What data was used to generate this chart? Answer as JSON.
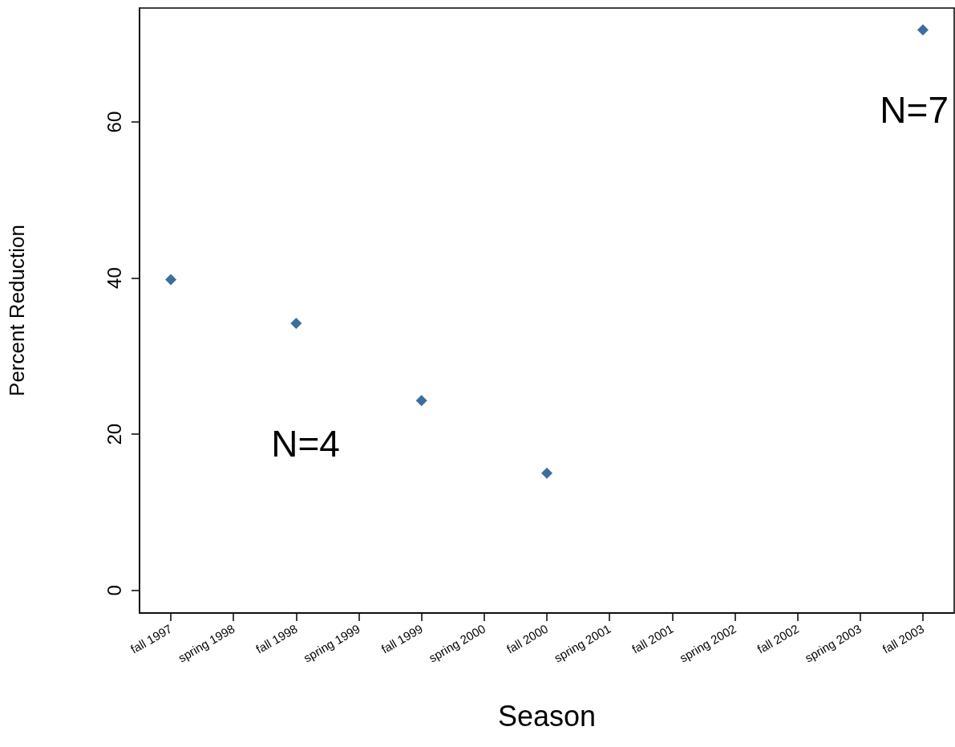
{
  "chart_data": {
    "type": "scatter",
    "xlabel": "Season",
    "ylabel": "Percent Reduction",
    "categories": [
      "fall 1997",
      "spring 1998",
      "fall 1998",
      "spring 1999",
      "fall 1999",
      "spring 2000",
      "fall 2000",
      "spring 2001",
      "fall 2001",
      "spring 2002",
      "fall 2002",
      "spring 2003",
      "fall 2003"
    ],
    "values": [
      39.8,
      null,
      34.2,
      null,
      24.3,
      null,
      15.0,
      null,
      null,
      null,
      null,
      null,
      71.8
    ],
    "color": "#0b4a84",
    "marker": "diamond",
    "ylim": [
      -2.9,
      74.6
    ],
    "yticks": [
      0,
      20,
      40,
      60
    ],
    "annotations": [
      "N=4",
      "N=7"
    ]
  }
}
